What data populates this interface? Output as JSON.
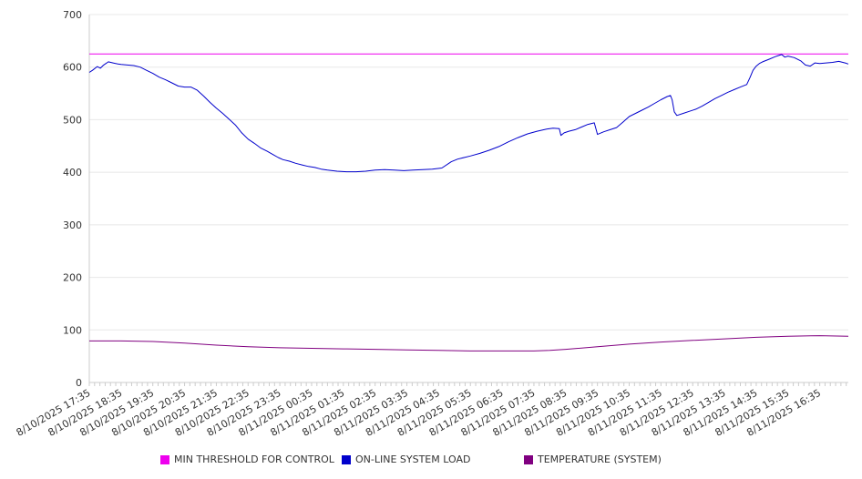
{
  "chart_data": {
    "type": "line",
    "title": "",
    "xlabel": "",
    "ylabel": "",
    "ylim": [
      0,
      700
    ],
    "yticks": [
      0,
      100,
      200,
      300,
      400,
      500,
      600,
      700
    ],
    "x_tick_labels": [
      "8/10/2025 17:35",
      "8/10/2025 18:35",
      "8/10/2025 19:35",
      "8/10/2025 20:35",
      "8/10/2025 21:35",
      "8/10/2025 22:35",
      "8/10/2025 23:35",
      "8/11/2025 00:35",
      "8/11/2025 01:35",
      "8/11/2025 02:35",
      "8/11/2025 03:35",
      "8/11/2025 04:35",
      "8/11/2025 05:35",
      "8/11/2025 06:35",
      "8/11/2025 07:35",
      "8/11/2025 08:35",
      "8/11/2025 09:35",
      "8/11/2025 10:35",
      "8/11/2025 11:35",
      "8/11/2025 12:35",
      "8/11/2025 13:35",
      "8/11/2025 14:35",
      "8/11/2025 15:35",
      "8/11/2025 16:35"
    ],
    "x_hours_range": [
      0,
      23.9
    ],
    "grid": true,
    "legend_position": "bottom",
    "series": [
      {
        "name": "MIN THRESHOLD FOR CONTROL",
        "color": "#ee00ee",
        "x_hours": [
          0,
          23.9
        ],
        "values": [
          625,
          625
        ]
      },
      {
        "name": "ON-LINE SYSTEM LOAD",
        "color": "#0000cc",
        "x_hours": [
          0,
          0.1,
          0.25,
          0.35,
          0.45,
          0.55,
          0.6,
          0.75,
          0.9,
          1.0,
          1.2,
          1.4,
          1.6,
          1.8,
          2.0,
          2.2,
          2.4,
          2.6,
          2.8,
          3.0,
          3.2,
          3.4,
          3.6,
          3.8,
          4.0,
          4.2,
          4.4,
          4.6,
          4.8,
          5.0,
          5.2,
          5.4,
          5.6,
          5.8,
          5.95,
          6.1,
          6.3,
          6.5,
          6.7,
          6.9,
          7.1,
          7.3,
          7.5,
          7.8,
          8.1,
          8.4,
          8.7,
          9.0,
          9.3,
          9.6,
          9.9,
          10.2,
          10.5,
          10.8,
          11.1,
          11.4,
          11.6,
          11.8,
          12.0,
          12.3,
          12.6,
          12.9,
          13.2,
          13.5,
          13.8,
          14.1,
          14.4,
          14.6,
          14.8,
          14.85,
          14.95,
          15.1,
          15.3,
          15.5,
          15.7,
          15.9,
          16.0,
          16.2,
          16.4,
          16.6,
          16.8,
          17.0,
          17.2,
          17.4,
          17.6,
          17.8,
          18.0,
          18.2,
          18.3,
          18.35,
          18.42,
          18.5,
          18.7,
          18.9,
          19.1,
          19.3,
          19.5,
          19.7,
          19.9,
          20.1,
          20.3,
          20.5,
          20.7,
          20.8,
          20.9,
          21.0,
          21.1,
          21.2,
          21.4,
          21.6,
          21.7,
          21.8,
          21.9,
          22.0,
          22.2,
          22.4,
          22.55,
          22.7,
          22.85,
          23.0,
          23.2,
          23.4,
          23.6,
          23.8,
          23.9
        ],
        "values": [
          590,
          594,
          601,
          598,
          604,
          608,
          610,
          608,
          606,
          605,
          604,
          603,
          600,
          594,
          588,
          581,
          576,
          570,
          564,
          562,
          562,
          556,
          545,
          533,
          522,
          512,
          501,
          490,
          475,
          463,
          455,
          446,
          440,
          433,
          428,
          424,
          421,
          417,
          414,
          411,
          409,
          406,
          404,
          402,
          401,
          401,
          402,
          404,
          405,
          404,
          403,
          404,
          405,
          406,
          408,
          420,
          425,
          428,
          431,
          436,
          442,
          449,
          458,
          466,
          473,
          478,
          482,
          484,
          483,
          470,
          475,
          478,
          481,
          486,
          491,
          494,
          472,
          477,
          481,
          485,
          495,
          506,
          512,
          518,
          524,
          531,
          538,
          544,
          546,
          538,
          515,
          508,
          512,
          516,
          520,
          526,
          533,
          540,
          546,
          552,
          557,
          562,
          567,
          580,
          594,
          602,
          607,
          610,
          615,
          620,
          622,
          624,
          619,
          621,
          618,
          612,
          604,
          602,
          608,
          607,
          608,
          609,
          611,
          608,
          606
        ]
      },
      {
        "name": "TEMPERATURE (SYSTEM)",
        "color": "#800080",
        "x_hours": [
          0,
          1,
          2,
          3,
          4,
          5,
          6,
          7,
          8,
          9,
          10,
          11,
          12,
          13,
          14,
          14.5,
          15,
          16,
          17,
          18,
          19,
          20,
          21,
          22,
          23,
          23.9
        ],
        "values": [
          79,
          79,
          78,
          75,
          71,
          68,
          66,
          65,
          64,
          63,
          62,
          61,
          60,
          60,
          60,
          61,
          63,
          68,
          73,
          77,
          80,
          83,
          86,
          88,
          89,
          88
        ]
      }
    ]
  }
}
